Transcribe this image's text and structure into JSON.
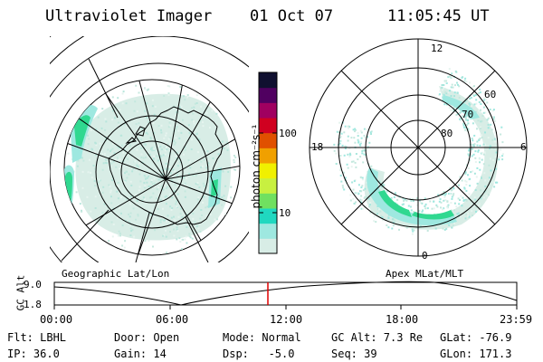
{
  "header": {
    "instrument": "Ultraviolet Imager",
    "date": "01 Oct 07",
    "time": "11:05:45 UT"
  },
  "colorbar": {
    "unit_label": "photon cm⁻²s⁻¹",
    "tick_100": "100",
    "tick_10": "10",
    "scale": "log",
    "colors": [
      "#d8ede6",
      "#9ee8e0",
      "#20d8c0",
      "#70e060",
      "#c8f040",
      "#f0f000",
      "#f0a000",
      "#e05000",
      "#d00020",
      "#a00060",
      "#500060",
      "#101030"
    ]
  },
  "left_map": {
    "caption": "Geographic Lat/Lon",
    "aurora_color": "#30d890"
  },
  "right_map": {
    "caption": "Apex MLat/MLT",
    "mlt_labels": {
      "top": "12",
      "left": "18",
      "right": "6",
      "bottom": "0"
    },
    "lat_labels": [
      "60",
      "70",
      "80"
    ]
  },
  "altitude_plot": {
    "ylabel": "GC Alt",
    "ytick_top": "9.0",
    "ytick_bottom": "1.8",
    "xticks": [
      "00:00",
      "06:00",
      "12:00",
      "18:00",
      "23:59"
    ],
    "current_time_marker_color": "#e00000"
  },
  "status": {
    "flt": "Flt: LBHL",
    "door": "Door: Open",
    "mode": "Mode: Normal",
    "gc_alt": "GC Alt: 7.3 Re",
    "glat": "GLat: -76.9",
    "ip": "IP: 36.0",
    "gain": "Gain: 14",
    "dsp": "Dsp:   -5.0",
    "seq": "Seq: 39",
    "glon": "GLon: 171.3"
  }
}
